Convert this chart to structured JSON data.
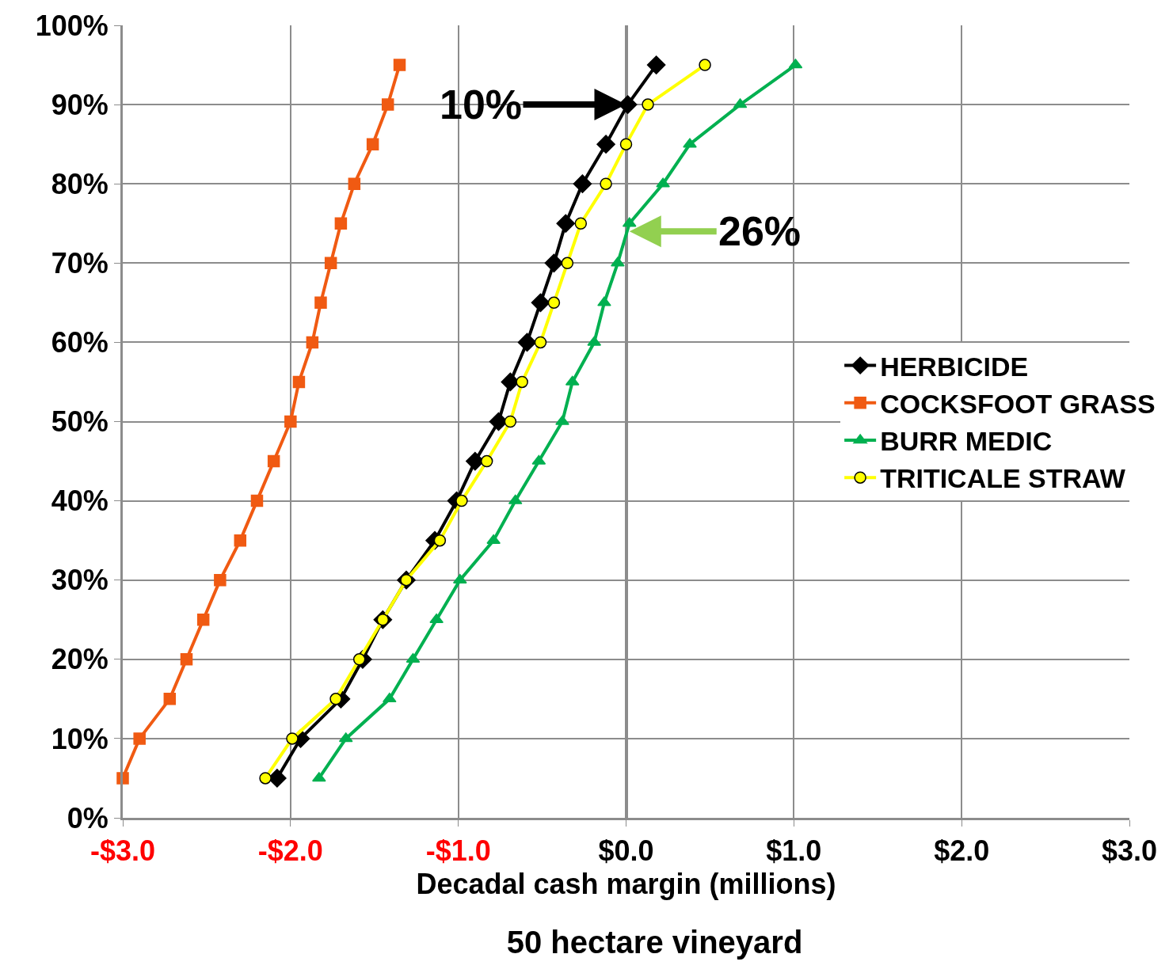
{
  "chart_data": {
    "type": "line",
    "title": "50 hectare vineyard",
    "xlabel": "Decadal cash margin (millions)",
    "series": [
      {
        "name": "HERBICIDE",
        "color": "#000000",
        "marker": "diamond",
        "x": [
          -2.08,
          -1.94,
          -1.7,
          -1.57,
          -1.45,
          -1.31,
          -1.14,
          -1.01,
          -0.9,
          -0.76,
          -0.69,
          -0.59,
          -0.51,
          -0.43,
          -0.36,
          -0.26,
          -0.12,
          0.01,
          0.18
        ],
        "values": [
          5,
          10,
          15,
          20,
          25,
          30,
          35,
          40,
          45,
          50,
          55,
          60,
          65,
          70,
          75,
          80,
          85,
          90,
          95
        ]
      },
      {
        "name": "COCKSFOOT GRASS",
        "color": "#f05a12",
        "marker": "square",
        "x": [
          -3.0,
          -2.9,
          -2.72,
          -2.62,
          -2.52,
          -2.42,
          -2.3,
          -2.2,
          -2.1,
          -2.0,
          -1.95,
          -1.87,
          -1.82,
          -1.76,
          -1.7,
          -1.62,
          -1.51,
          -1.42,
          -1.35
        ],
        "values": [
          5,
          10,
          15,
          20,
          25,
          30,
          35,
          40,
          45,
          50,
          55,
          60,
          65,
          70,
          75,
          80,
          85,
          90,
          95
        ]
      },
      {
        "name": "BURR MEDIC",
        "color": "#00b050",
        "marker": "triangle",
        "x": [
          -1.83,
          -1.67,
          -1.41,
          -1.27,
          -1.13,
          -0.99,
          -0.79,
          -0.66,
          -0.52,
          -0.38,
          -0.32,
          -0.19,
          -0.13,
          -0.05,
          0.02,
          0.22,
          0.38,
          0.68,
          1.01
        ],
        "values": [
          5,
          10,
          15,
          20,
          25,
          30,
          35,
          40,
          45,
          50,
          55,
          60,
          65,
          70,
          75,
          80,
          85,
          90,
          95
        ]
      },
      {
        "name": "TRITICALE STRAW",
        "color": "#ffff00",
        "marker": "circle",
        "x": [
          -2.15,
          -1.99,
          -1.73,
          -1.59,
          -1.45,
          -1.31,
          -1.11,
          -0.98,
          -0.83,
          -0.69,
          -0.62,
          -0.51,
          -0.43,
          -0.35,
          -0.27,
          -0.12,
          0.0,
          0.13,
          0.47
        ],
        "values": [
          5,
          10,
          15,
          20,
          25,
          30,
          35,
          40,
          45,
          50,
          55,
          60,
          65,
          70,
          75,
          80,
          85,
          90,
          95
        ]
      }
    ],
    "xlim": [
      -3,
      3
    ],
    "xticks": [
      {
        "value": -3,
        "label": "-$3.0"
      },
      {
        "value": -2,
        "label": "-$2.0"
      },
      {
        "value": -1,
        "label": "-$1.0"
      },
      {
        "value": 0,
        "label": "$0.0"
      },
      {
        "value": 1,
        "label": "$1.0"
      },
      {
        "value": 2,
        "label": "$2.0"
      },
      {
        "value": 3,
        "label": "$3.0"
      }
    ],
    "ylim": [
      0,
      100
    ],
    "yticks": [
      {
        "value": 0,
        "label": "0%"
      },
      {
        "value": 10,
        "label": "10%"
      },
      {
        "value": 20,
        "label": "20%"
      },
      {
        "value": 30,
        "label": "30%"
      },
      {
        "value": 40,
        "label": "40%"
      },
      {
        "value": 50,
        "label": "50%"
      },
      {
        "value": 60,
        "label": "60%"
      },
      {
        "value": 70,
        "label": "70%"
      },
      {
        "value": 80,
        "label": "80%"
      },
      {
        "value": 90,
        "label": "90%"
      },
      {
        "value": 100,
        "label": "100%"
      }
    ],
    "annotations": [
      {
        "text": "10%",
        "x": 0.0,
        "y": 90
      },
      {
        "text": "26%",
        "x": 0.02,
        "y": 74
      }
    ],
    "grid": true,
    "legend": "right",
    "line_style": "solid"
  }
}
